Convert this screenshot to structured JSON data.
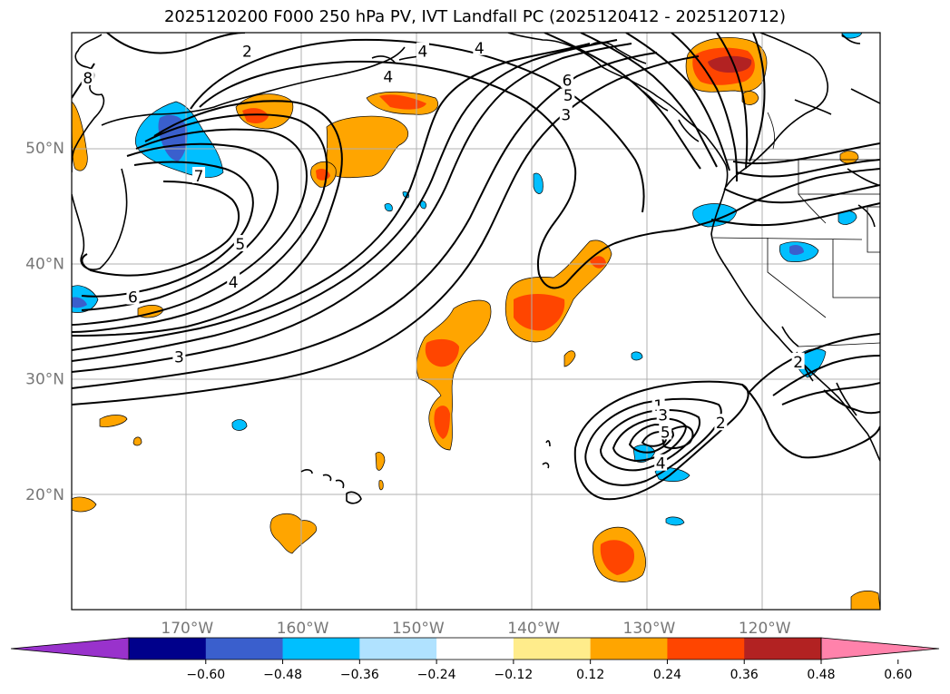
{
  "title": "2025120200 F000 250 hPa PV, IVT Landfall PC (2025120412 - 2025120712)",
  "lat_labels": [
    {
      "value": 50,
      "label": "50°N"
    },
    {
      "value": 40,
      "label": "40°N"
    },
    {
      "value": 30,
      "label": "30°N"
    },
    {
      "value": 20,
      "label": "20°N"
    }
  ],
  "lon_labels": [
    {
      "value": -170,
      "label": "170°W"
    },
    {
      "value": -160,
      "label": "160°W"
    },
    {
      "value": -150,
      "label": "150°W"
    },
    {
      "value": -140,
      "label": "140°W"
    },
    {
      "value": -130,
      "label": "130°W"
    },
    {
      "value": -120,
      "label": "120°W"
    }
  ],
  "colorbar": {
    "colors": [
      "#9932cc",
      "#00008b",
      "#3a5fcd",
      "#00bfff",
      "#b0e2ff",
      "#ffffff",
      "#ffec8b",
      "#ffa500",
      "#ff4500",
      "#b22222",
      "#ff82ab"
    ],
    "ticks": [
      "−0.60",
      "−0.48",
      "−0.36",
      "−0.24",
      "−0.12",
      "0.12",
      "0.24",
      "0.36",
      "0.48",
      "0.60"
    ]
  },
  "contour_labels": [
    {
      "text": "2",
      "lon": -164.8,
      "lat": 58.3
    },
    {
      "text": "8",
      "lon": -178.6,
      "lat": 56.0
    },
    {
      "text": "4",
      "lon": -149.6,
      "lat": 58.3
    },
    {
      "text": "4",
      "lon": -152.6,
      "lat": 56.1
    },
    {
      "text": "7",
      "lon": -169.0,
      "lat": 47.5
    },
    {
      "text": "5",
      "lon": -165.4,
      "lat": 41.6
    },
    {
      "text": "4",
      "lon": -166.0,
      "lat": 38.3
    },
    {
      "text": "6",
      "lon": -174.7,
      "lat": 37.0
    },
    {
      "text": "3",
      "lon": -170.7,
      "lat": 31.8
    },
    {
      "text": "4",
      "lon": -144.7,
      "lat": 58.6
    },
    {
      "text": "6",
      "lon": -137.1,
      "lat": 55.8
    },
    {
      "text": "5",
      "lon": -137.0,
      "lat": 54.5
    },
    {
      "text": "3",
      "lon": -137.2,
      "lat": 52.8
    },
    {
      "text": "1",
      "lon": -129.2,
      "lat": 27.6
    },
    {
      "text": "3",
      "lon": -128.8,
      "lat": 26.8
    },
    {
      "text": "5",
      "lon": -128.6,
      "lat": 25.3
    },
    {
      "text": "4",
      "lon": -129.0,
      "lat": 22.6
    },
    {
      "text": "2",
      "lon": -123.8,
      "lat": 26.1
    },
    {
      "text": "2",
      "lon": -117.1,
      "lat": 31.4
    }
  ]
}
